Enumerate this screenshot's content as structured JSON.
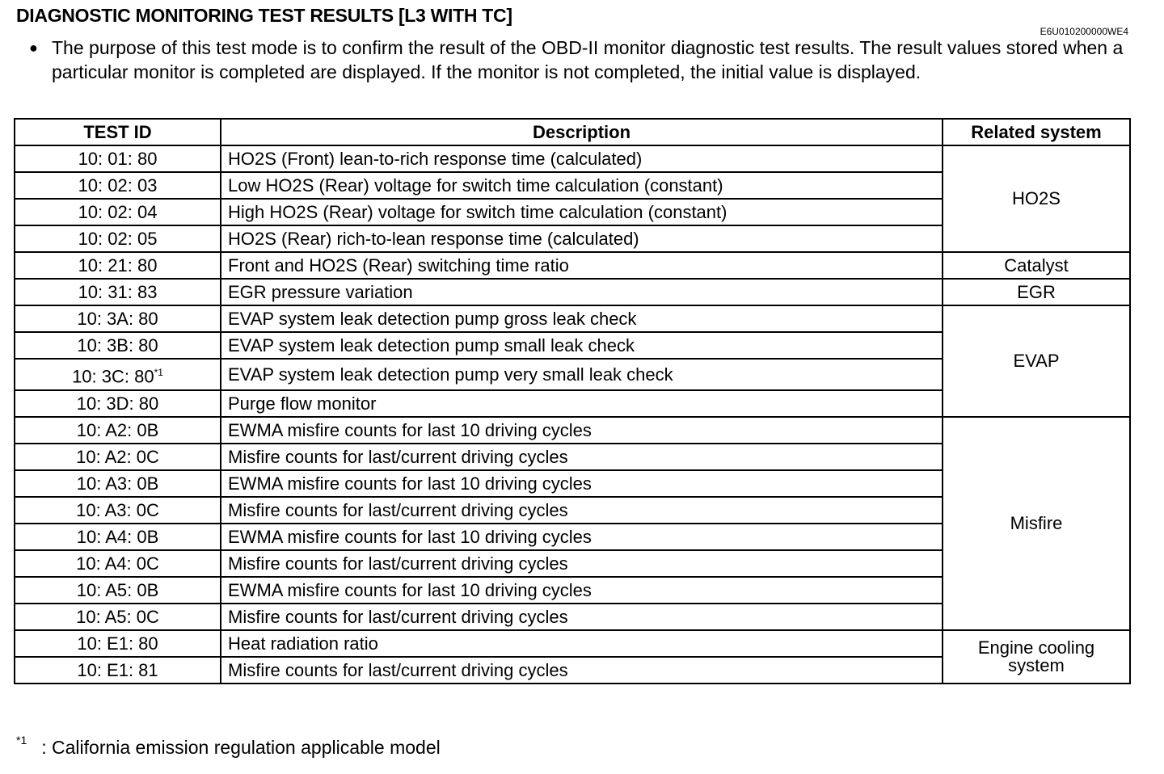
{
  "title": "DIAGNOSTIC MONITORING TEST RESULTS [L3 WITH TC]",
  "doc_id": "E6U010200000WE4",
  "intro": "The purpose of this test mode is to confirm the result of the OBD-II monitor diagnostic test results. The result values stored when a particular monitor is completed are displayed. If the monitor is not completed, the initial value is displayed.",
  "table": {
    "headers": [
      "TEST ID",
      "Description",
      "Related system"
    ],
    "rows": [
      {
        "id": "10: 01: 80",
        "desc": "HO2S (Front) lean-to-rich response time (calculated)",
        "sys": "HO2S",
        "span": 4
      },
      {
        "id": "10: 02: 03",
        "desc": "Low HO2S (Rear) voltage for switch time calculation (constant)"
      },
      {
        "id": "10: 02: 04",
        "desc": "High HO2S (Rear) voltage for switch time calculation (constant)"
      },
      {
        "id": "10: 02: 05",
        "desc": "HO2S (Rear) rich-to-lean response time (calculated)"
      },
      {
        "id": "10: 21: 80",
        "desc": "Front and HO2S (Rear) switching time ratio",
        "sys": "Catalyst",
        "span": 1
      },
      {
        "id": "10: 31: 83",
        "desc": "EGR pressure variation",
        "sys": "EGR",
        "span": 1
      },
      {
        "id": "10: 3A: 80",
        "desc": "EVAP system leak detection pump gross leak check",
        "sys": "EVAP",
        "span": 4
      },
      {
        "id": "10: 3B: 80",
        "desc": "EVAP system leak detection pump small leak check"
      },
      {
        "id": "10: 3C: 80",
        "sup": "*1",
        "desc": "EVAP system leak detection pump very small leak check"
      },
      {
        "id": "10: 3D: 80",
        "desc": "Purge flow monitor"
      },
      {
        "id": "10: A2: 0B",
        "desc": "EWMA misfire counts for last 10 driving cycles",
        "sys": "Misfire",
        "span": 8
      },
      {
        "id": "10: A2: 0C",
        "desc": "Misfire counts for last/current driving cycles"
      },
      {
        "id": "10: A3: 0B",
        "desc": "EWMA misfire counts for last 10 driving cycles"
      },
      {
        "id": "10: A3: 0C",
        "desc": "Misfire counts for last/current driving cycles"
      },
      {
        "id": "10: A4: 0B",
        "desc": "EWMA misfire counts for last 10 driving cycles"
      },
      {
        "id": "10: A4: 0C",
        "desc": "Misfire counts for last/current driving cycles"
      },
      {
        "id": "10: A5: 0B",
        "desc": "EWMA misfire counts for last 10 driving cycles"
      },
      {
        "id": "10: A5: 0C",
        "desc": "Misfire counts for last/current driving cycles"
      },
      {
        "id": "10: E1: 80",
        "desc": "Heat radiation ratio",
        "sys": "Engine cooling system",
        "span": 2
      },
      {
        "id": "10: E1: 81",
        "desc": "Misfire counts for last/current driving cycles"
      }
    ]
  },
  "footnote": {
    "mark": "*1",
    "text": ": California emission regulation applicable model"
  }
}
